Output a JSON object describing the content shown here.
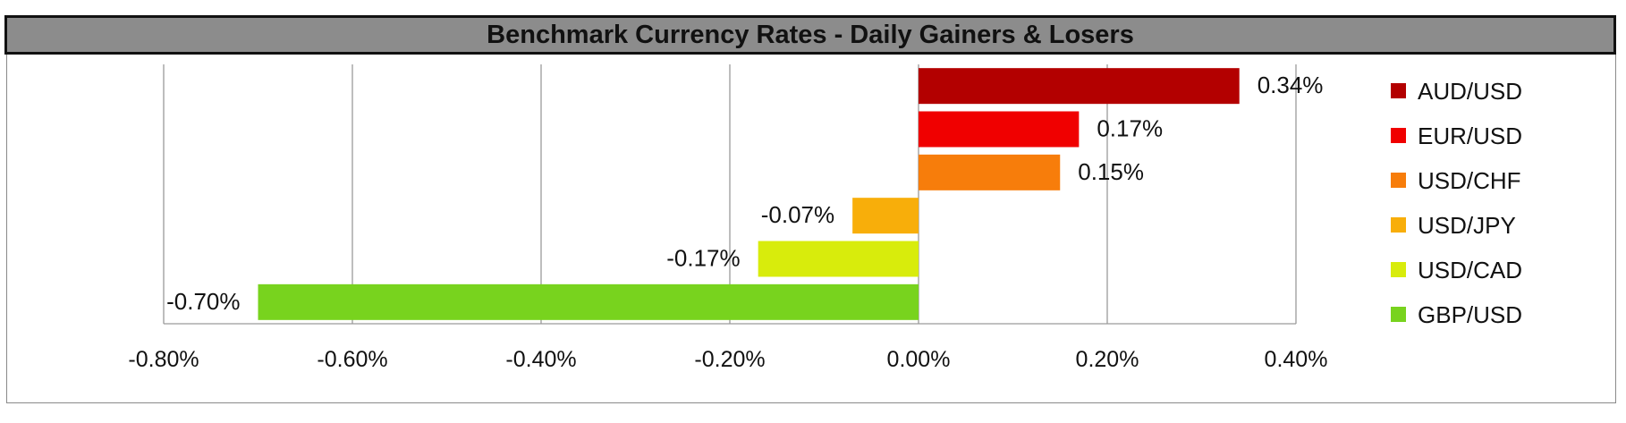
{
  "chart_data": {
    "type": "bar",
    "orientation": "horizontal",
    "title": "Benchmark Currency Rates - Daily Gainers & Losers",
    "categories": [
      "AUD/USD",
      "EUR/USD",
      "USD/CHF",
      "USD/JPY",
      "USD/CAD",
      "GBP/USD"
    ],
    "values": [
      0.34,
      0.17,
      0.15,
      -0.07,
      -0.17,
      -0.7
    ],
    "data_labels": [
      "0.34%",
      "0.17%",
      "0.15%",
      "-0.07%",
      "-0.17%",
      "-0.70%"
    ],
    "colors": [
      "#b30000",
      "#f00000",
      "#f77d0b",
      "#f8ae0a",
      "#d8ec0c",
      "#78d31e"
    ],
    "xlim": [
      -0.8,
      0.4
    ],
    "xticks": [
      -0.8,
      -0.6,
      -0.4,
      -0.2,
      0.0,
      0.2,
      0.4
    ],
    "xtick_labels": [
      "-0.80%",
      "-0.60%",
      "-0.40%",
      "-0.20%",
      "0.00%",
      "0.20%",
      "0.40%"
    ],
    "grid": true,
    "legend_position": "right"
  }
}
